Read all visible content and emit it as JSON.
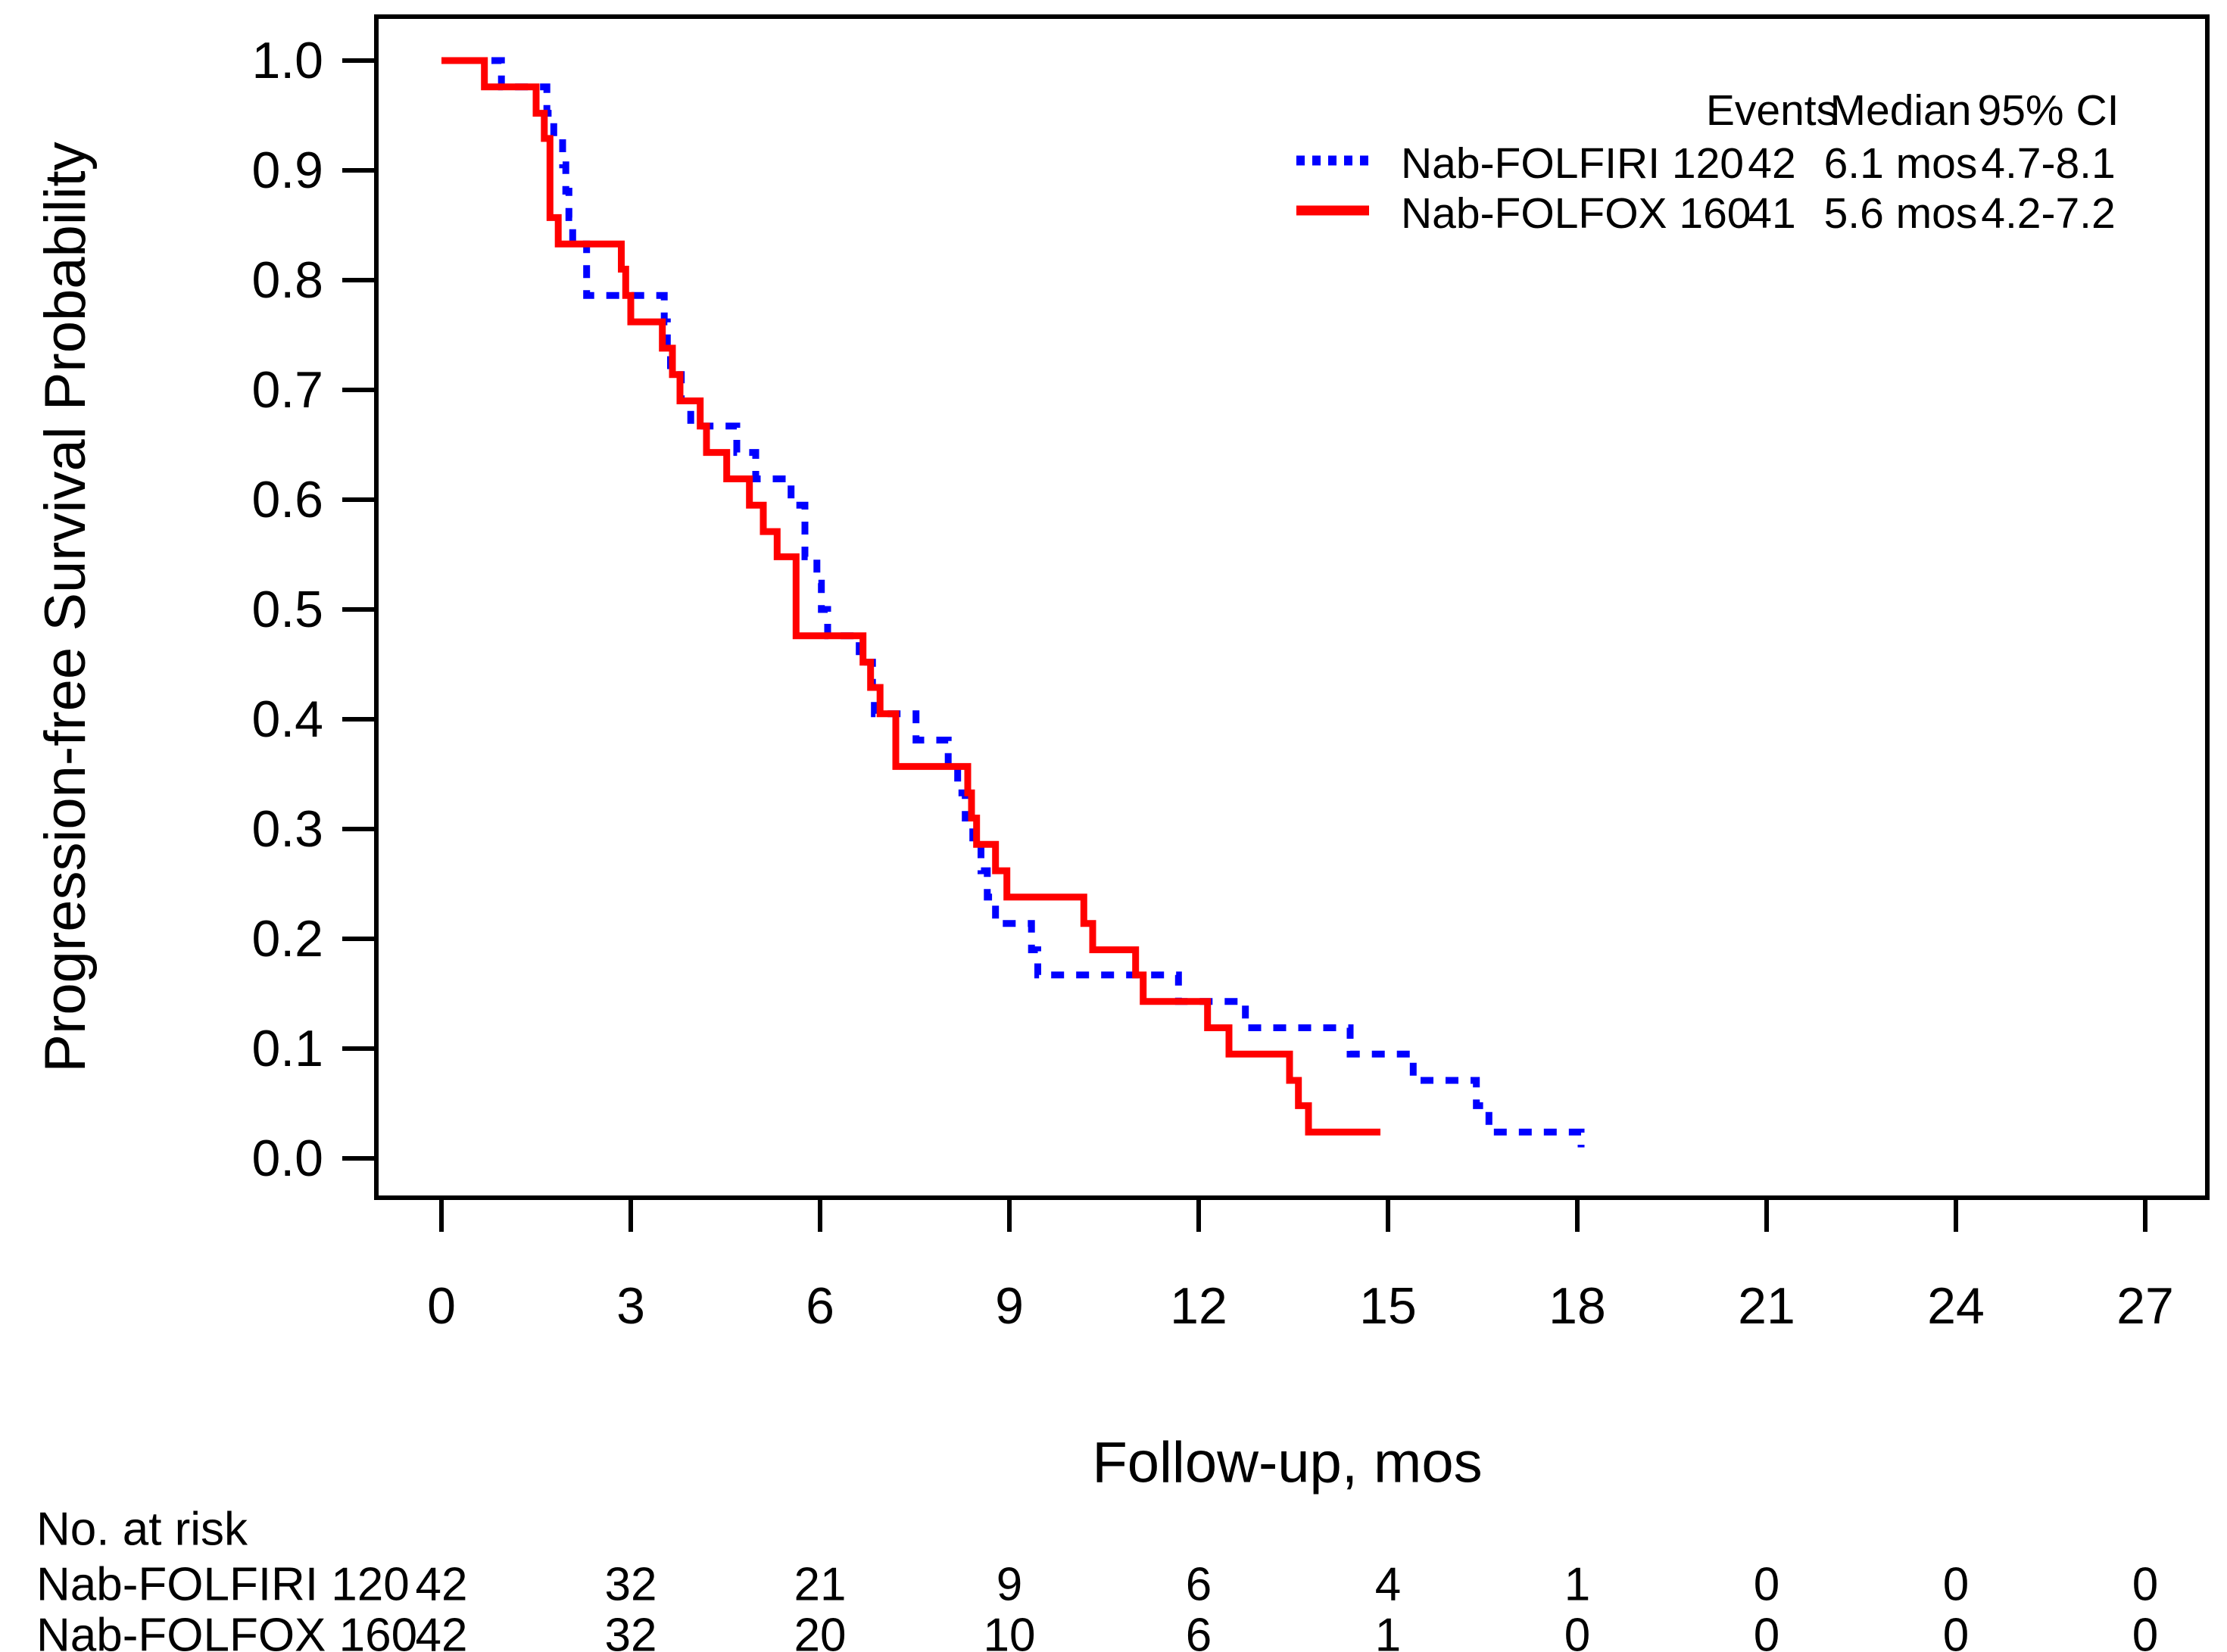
{
  "figure": {
    "background": "#ffffff",
    "axis_color": "#000000",
    "y_axis": {
      "title": "Progression-free Survival Probability",
      "tick_labels": [
        "1.0",
        "0.9",
        "0.8",
        "0.7",
        "0.6",
        "0.5",
        "0.4",
        "0.3",
        "0.2",
        "0.1",
        "0.0"
      ],
      "tick_values": [
        1.0,
        0.9,
        0.8,
        0.7,
        0.6,
        0.5,
        0.4,
        0.3,
        0.2,
        0.1,
        0.0
      ]
    },
    "x_axis": {
      "title": "Follow-up, mos",
      "tick_labels": [
        "0",
        "3",
        "6",
        "9",
        "12",
        "15",
        "18",
        "21",
        "24",
        "27"
      ],
      "tick_values": [
        0,
        3,
        6,
        9,
        12,
        15,
        18,
        21,
        24,
        27
      ]
    }
  },
  "legend": {
    "header": {
      "events": "Events",
      "median": "Median",
      "ci": "95% CI"
    },
    "rows": [
      {
        "label": "Nab-FOLFIRI 120",
        "events": "42",
        "median": "6.1 mos",
        "ci": "4.7-8.1",
        "color": "#0000ff",
        "line_style": "dotted"
      },
      {
        "label": "Nab-FOLFOX 160",
        "events": "41",
        "median": "5.6 mos",
        "ci": "4.2-7.2",
        "color": "#ff0000",
        "line_style": "solid"
      }
    ]
  },
  "risk_table": {
    "title": "No. at risk",
    "times": [
      0,
      3,
      6,
      9,
      12,
      15,
      18,
      21,
      24,
      27
    ],
    "rows": [
      {
        "label": "Nab-FOLFIRI 120",
        "counts": [
          "42",
          "32",
          "21",
          "9",
          "6",
          "4",
          "1",
          "0",
          "0",
          "0"
        ]
      },
      {
        "label": "Nab-FOLFOX 160",
        "counts": [
          "42",
          "32",
          "20",
          "10",
          "6",
          "1",
          "0",
          "0",
          "0",
          "0"
        ]
      }
    ]
  },
  "chart_data": {
    "type": "line",
    "subtype": "kaplan-meier-step",
    "xlabel": "Follow-up, mos",
    "ylabel": "Progression-free Survival Probability",
    "xlim": [
      0,
      27
    ],
    "ylim": [
      0.0,
      1.0
    ],
    "grid": false,
    "legend_position": "top-right",
    "series": [
      {
        "name": "Nab-FOLFIRI 120",
        "color": "#0000ff",
        "line_style": "dotted",
        "events": 42,
        "median_months": 6.1,
        "ci_95": "4.7-8.1",
        "start": [
          0,
          1.0
        ],
        "end_time": 18.06,
        "steps": [
          [
            0.95,
            0.976
          ],
          [
            1.67,
            0.952
          ],
          [
            1.78,
            0.929
          ],
          [
            1.92,
            0.905
          ],
          [
            1.97,
            0.881
          ],
          [
            2.02,
            0.857
          ],
          [
            2.08,
            0.833
          ],
          [
            2.3,
            0.786
          ],
          [
            3.53,
            0.762
          ],
          [
            3.58,
            0.738
          ],
          [
            3.63,
            0.714
          ],
          [
            3.8,
            0.69
          ],
          [
            3.95,
            0.667
          ],
          [
            4.68,
            0.643
          ],
          [
            4.98,
            0.619
          ],
          [
            5.54,
            0.595
          ],
          [
            5.76,
            0.548
          ],
          [
            5.95,
            0.524
          ],
          [
            6.02,
            0.5
          ],
          [
            6.12,
            0.476
          ],
          [
            6.62,
            0.452
          ],
          [
            6.83,
            0.429
          ],
          [
            6.86,
            0.405
          ],
          [
            7.52,
            0.381
          ],
          [
            8.03,
            0.357
          ],
          [
            8.18,
            0.333
          ],
          [
            8.3,
            0.31
          ],
          [
            8.42,
            0.286
          ],
          [
            8.55,
            0.262
          ],
          [
            8.65,
            0.238
          ],
          [
            8.78,
            0.214
          ],
          [
            9.35,
            0.19
          ],
          [
            9.45,
            0.167
          ],
          [
            11.68,
            0.143
          ],
          [
            12.74,
            0.119
          ],
          [
            14.4,
            0.095
          ],
          [
            15.4,
            0.071
          ],
          [
            16.4,
            0.048
          ],
          [
            16.6,
            0.024
          ],
          [
            18.06,
            0.01
          ]
        ]
      },
      {
        "name": "Nab-FOLFOX 160",
        "color": "#ff0000",
        "line_style": "solid",
        "events": 41,
        "median_months": 5.6,
        "ci_95": "4.2-7.2",
        "start": [
          0,
          1.0
        ],
        "end_time": 14.88,
        "steps": [
          [
            0.68,
            0.976
          ],
          [
            1.5,
            0.952
          ],
          [
            1.63,
            0.929
          ],
          [
            1.72,
            0.857
          ],
          [
            1.85,
            0.833
          ],
          [
            2.85,
            0.81
          ],
          [
            2.92,
            0.786
          ],
          [
            3.0,
            0.762
          ],
          [
            3.5,
            0.738
          ],
          [
            3.66,
            0.714
          ],
          [
            3.78,
            0.69
          ],
          [
            4.1,
            0.667
          ],
          [
            4.2,
            0.643
          ],
          [
            4.52,
            0.619
          ],
          [
            4.88,
            0.595
          ],
          [
            5.1,
            0.571
          ],
          [
            5.32,
            0.548
          ],
          [
            5.62,
            0.476
          ],
          [
            6.68,
            0.452
          ],
          [
            6.8,
            0.429
          ],
          [
            6.95,
            0.405
          ],
          [
            7.2,
            0.357
          ],
          [
            8.34,
            0.333
          ],
          [
            8.4,
            0.31
          ],
          [
            8.48,
            0.286
          ],
          [
            8.78,
            0.262
          ],
          [
            8.96,
            0.238
          ],
          [
            10.18,
            0.214
          ],
          [
            10.32,
            0.19
          ],
          [
            11.0,
            0.167
          ],
          [
            11.12,
            0.143
          ],
          [
            12.14,
            0.119
          ],
          [
            12.48,
            0.095
          ],
          [
            13.44,
            0.071
          ],
          [
            13.58,
            0.048
          ],
          [
            13.74,
            0.024
          ]
        ]
      }
    ]
  }
}
